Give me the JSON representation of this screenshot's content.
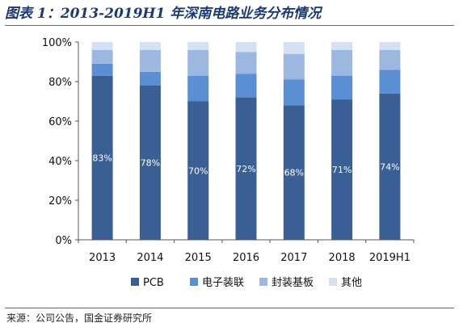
{
  "title": "图表 1：2013-2019H1 年深南电路业务分布情况",
  "source": "来源：公司公告，国金证券研究所",
  "chart_data": {
    "type": "bar",
    "stacked": true,
    "categories": [
      "2013",
      "2014",
      "2015",
      "2016",
      "2017",
      "2018",
      "2019H1"
    ],
    "series": [
      {
        "name": "PCB",
        "color": "#3a5f95",
        "values": [
          83,
          78,
          70,
          72,
          68,
          71,
          74
        ],
        "value_labels": [
          "83%",
          "78%",
          "70%",
          "72%",
          "68%",
          "71%",
          "74%"
        ]
      },
      {
        "name": "电子装联",
        "color": "#5b8fd3",
        "values": [
          6,
          7,
          13,
          12,
          13,
          12,
          12
        ]
      },
      {
        "name": "封装基板",
        "color": "#9db8e0",
        "values": [
          7,
          11,
          13,
          11,
          13,
          13,
          10
        ]
      },
      {
        "name": "其他",
        "color": "#d4e1f3",
        "values": [
          4,
          4,
          4,
          5,
          6,
          4,
          4
        ]
      }
    ],
    "y_ticks": [
      "0%",
      "20%",
      "40%",
      "60%",
      "80%",
      "100%"
    ],
    "ylim": [
      0,
      100
    ],
    "legend_position": "bottom",
    "grid": false
  }
}
